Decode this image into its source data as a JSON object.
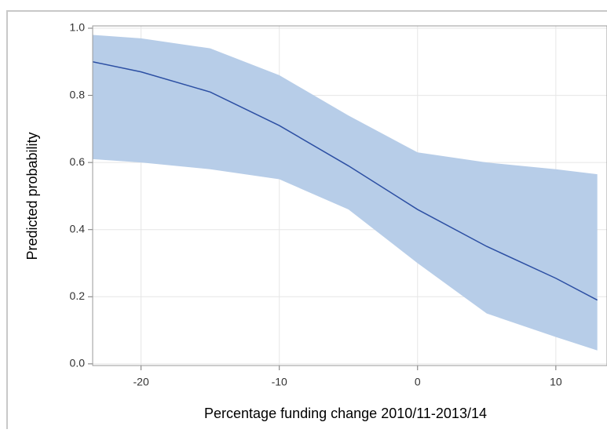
{
  "chart_data": {
    "type": "line",
    "xlabel": "Percentage funding change 2010/11-2013/14",
    "ylabel": "Predicted probability",
    "x": [
      -23.5,
      -20,
      -15,
      -10,
      -5,
      0,
      5,
      10,
      13
    ],
    "series": [
      {
        "color": "#2c4fa3",
        "values": [
          0.9,
          0.87,
          0.81,
          0.71,
          0.59,
          0.46,
          0.35,
          0.255,
          0.19
        ]
      }
    ],
    "band": {
      "color": "#b7cde8",
      "upper": [
        0.98,
        0.97,
        0.94,
        0.86,
        0.74,
        0.63,
        0.6,
        0.58,
        0.565
      ],
      "lower": [
        0.61,
        0.6,
        0.58,
        0.55,
        0.46,
        0.3,
        0.15,
        0.08,
        0.04
      ]
    },
    "xlim": [
      -23.5,
      13.7
    ],
    "ylim": [
      -0.005,
      1.007
    ],
    "xticks": [
      -20,
      -10,
      {
        "value": 0,
        "label": "0"
      },
      10
    ],
    "yticks": [
      {
        "value": 0,
        "label": "0.0"
      },
      0.2,
      0.4,
      0.6,
      0.8,
      {
        "value": 1,
        "label": "1.0"
      }
    ],
    "grid": true
  }
}
